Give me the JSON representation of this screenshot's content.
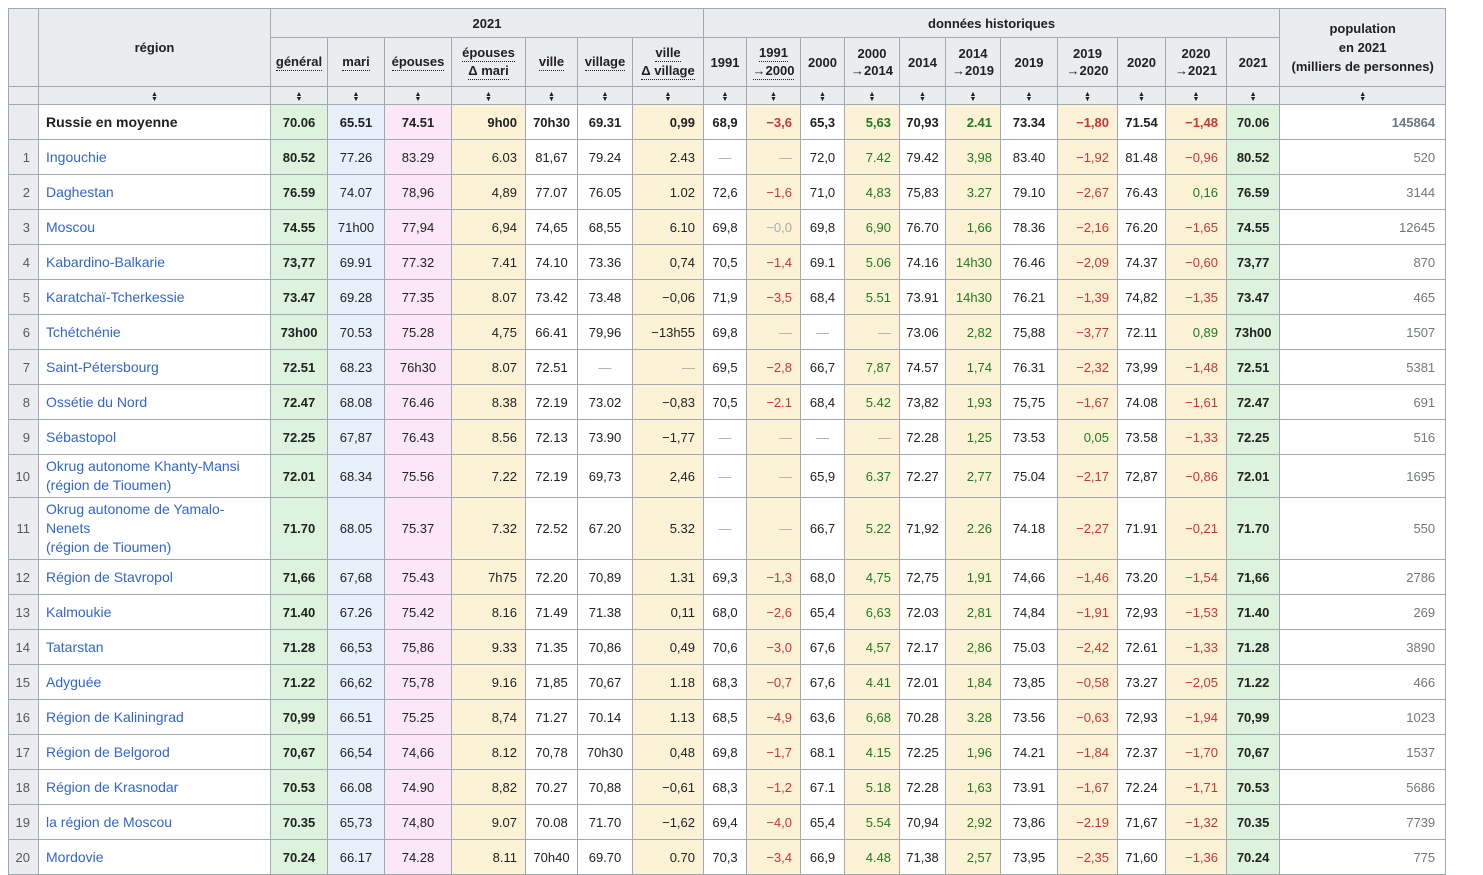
{
  "table": {
    "region_label": "région",
    "group_2021": "2021",
    "group_hist": "données historiques",
    "population_label": "population\nen 2021\n(milliers de personnes)",
    "columns_2021": [
      {
        "label": "général",
        "dotted": true
      },
      {
        "label": "mari",
        "dotted": true
      },
      {
        "label": "épouses",
        "dotted": true
      },
      {
        "label": "épouses\nΔ mari",
        "dotted": true
      },
      {
        "label": "ville",
        "dotted": true
      },
      {
        "label": "village",
        "dotted": true
      },
      {
        "label": "ville\nΔ village",
        "dotted": true
      }
    ],
    "columns_hist": [
      {
        "label": "1991",
        "dotted": false
      },
      {
        "label": "1991\n→2000",
        "dotted": true
      },
      {
        "label": "2000",
        "dotted": false
      },
      {
        "label": "2000\n→2014",
        "dotted": false
      },
      {
        "label": "2014",
        "dotted": false
      },
      {
        "label": "2014\n→2019",
        "dotted": false
      },
      {
        "label": "2019",
        "dotted": false
      },
      {
        "label": "2019\n→2020",
        "dotted": false
      },
      {
        "label": "2020",
        "dotted": false
      },
      {
        "label": "2020\n→2021",
        "dotted": false
      },
      {
        "label": "2021",
        "dotted": false
      }
    ],
    "rows": [
      {
        "num": "",
        "region": "Russie en moyenne",
        "link": false,
        "bold": true,
        "values": [
          "70.06",
          "65.51",
          "74.51",
          "9h00",
          "70h30",
          "69.31",
          "0,99",
          "68,9",
          "−3,6",
          "65,3",
          "5,63",
          "70,93",
          "2.41",
          "73.34",
          "−1,80",
          "71.54",
          "−1,48",
          "70.06"
        ],
        "pop": "145864"
      },
      {
        "num": "1",
        "region": "Ingouchie",
        "link": true,
        "values": [
          "80.52",
          "77.26",
          "83.29",
          "6.03",
          "81,67",
          "79.24",
          "2.43",
          "—",
          "—",
          "72,0",
          "7.42",
          "79.42",
          "3,98",
          "83.40",
          "−1,92",
          "81.48",
          "−0,96",
          "80.52"
        ],
        "pop": "520"
      },
      {
        "num": "2",
        "region": "Daghestan",
        "link": true,
        "values": [
          "76.59",
          "74.07",
          "78,96",
          "4,89",
          "77.07",
          "76.05",
          "1.02",
          "72,6",
          "−1,6",
          "71,0",
          "4,83",
          "75,83",
          "3.27",
          "79.10",
          "−2,67",
          "76.43",
          "0,16",
          "76.59"
        ],
        "pop": "3144"
      },
      {
        "num": "3",
        "region": "Moscou",
        "link": true,
        "values": [
          "74.55",
          "71h00",
          "77,94",
          "6,94",
          "74,65",
          "68,55",
          "6.10",
          "69,8",
          "−0,0",
          "69,8",
          "6,90",
          "76.70",
          "1,66",
          "78.36",
          "−2,16",
          "76.20",
          "−1,65",
          "74.55"
        ],
        "pop": "12645"
      },
      {
        "num": "4",
        "region": "Kabardino-Balkarie",
        "link": true,
        "values": [
          "73,77",
          "69.91",
          "77.32",
          "7.41",
          "74.10",
          "73.36",
          "0,74",
          "70,5",
          "−1,4",
          "69.1",
          "5.06",
          "74.16",
          "14h30",
          "76.46",
          "−2,09",
          "74.37",
          "−0,60",
          "73,77"
        ],
        "pop": "870"
      },
      {
        "num": "5",
        "region": "Karatchaï-Tcherkessie",
        "link": true,
        "values": [
          "73.47",
          "69.28",
          "77.35",
          "8.07",
          "73.42",
          "73.48",
          "−0,06",
          "71,9",
          "−3,5",
          "68,4",
          "5.51",
          "73.91",
          "14h30",
          "76.21",
          "−1,39",
          "74,82",
          "−1,35",
          "73.47"
        ],
        "pop": "465"
      },
      {
        "num": "6",
        "region": "Tchétchénie",
        "link": true,
        "values": [
          "73h00",
          "70.53",
          "75.28",
          "4,75",
          "66.41",
          "79,96",
          "−13h55",
          "69,8",
          "—",
          "—",
          "—",
          "73.06",
          "2,82",
          "75,88",
          "−3,77",
          "72.11",
          "0,89",
          "73h00"
        ],
        "pop": "1507"
      },
      {
        "num": "7",
        "region": "Saint-Pétersbourg",
        "link": true,
        "values": [
          "72.51",
          "68.23",
          "76h30",
          "8.07",
          "72.51",
          "—",
          "—",
          "69,5",
          "−2,8",
          "66,7",
          "7,87",
          "74.57",
          "1,74",
          "76.31",
          "−2,32",
          "73,99",
          "−1,48",
          "72.51"
        ],
        "pop": "5381"
      },
      {
        "num": "8",
        "region": "Ossétie du Nord",
        "link": true,
        "values": [
          "72.47",
          "68.08",
          "76.46",
          "8.38",
          "72.19",
          "73.02",
          "−0,83",
          "70,5",
          "−2.1",
          "68,4",
          "5.42",
          "73,82",
          "1,93",
          "75,75",
          "−1,67",
          "74.08",
          "−1,61",
          "72.47"
        ],
        "pop": "691"
      },
      {
        "num": "9",
        "region": "Sébastopol",
        "link": true,
        "values": [
          "72.25",
          "67,87",
          "76.43",
          "8.56",
          "72.13",
          "73.90",
          "−1,77",
          "—",
          "—",
          "—",
          "—",
          "72.28",
          "1,25",
          "73.53",
          "0,05",
          "73.58",
          "−1,33",
          "72.25"
        ],
        "pop": "516"
      },
      {
        "num": "10",
        "region": "Okrug autonome Khanty-Mansi\n(région de Tioumen)",
        "link": true,
        "values": [
          "72.01",
          "68.34",
          "75.56",
          "7.22",
          "72.19",
          "69,73",
          "2,46",
          "—",
          "—",
          "65,9",
          "6.37",
          "72.27",
          "2,77",
          "75.04",
          "−2,17",
          "72,87",
          "−0,86",
          "72.01"
        ],
        "pop": "1695"
      },
      {
        "num": "11",
        "region": "Okrug autonome de Yamalo-Nenets\n(région de Tioumen)",
        "link": true,
        "values": [
          "71.70",
          "68.05",
          "75.37",
          "7.32",
          "72.52",
          "67.20",
          "5.32",
          "—",
          "—",
          "66,7",
          "5.22",
          "71,92",
          "2.26",
          "74.18",
          "−2,27",
          "71.91",
          "−0,21",
          "71.70"
        ],
        "pop": "550"
      },
      {
        "num": "12",
        "region": "Région de Stavropol",
        "link": true,
        "values": [
          "71,66",
          "67,68",
          "75.43",
          "7h75",
          "72.20",
          "70,89",
          "1.31",
          "69,3",
          "−1,3",
          "68,0",
          "4,75",
          "72,75",
          "1,91",
          "74,66",
          "−1,46",
          "73.20",
          "−1,54",
          "71,66"
        ],
        "pop": "2786"
      },
      {
        "num": "13",
        "region": "Kalmoukie",
        "link": true,
        "values": [
          "71.40",
          "67.26",
          "75.42",
          "8.16",
          "71.49",
          "71.38",
          "0,11",
          "68,0",
          "−2,6",
          "65,4",
          "6,63",
          "72.03",
          "2,81",
          "74,84",
          "−1,91",
          "72,93",
          "−1,53",
          "71.40"
        ],
        "pop": "269"
      },
      {
        "num": "14",
        "region": "Tatarstan",
        "link": true,
        "values": [
          "71.28",
          "66,53",
          "75,86",
          "9.33",
          "71.35",
          "70,86",
          "0,49",
          "70,6",
          "−3,0",
          "67,6",
          "4,57",
          "72.17",
          "2,86",
          "75.03",
          "−2,42",
          "72.61",
          "−1,33",
          "71.28"
        ],
        "pop": "3890"
      },
      {
        "num": "15",
        "region": "Adyguée",
        "link": true,
        "values": [
          "71.22",
          "66,62",
          "75,78",
          "9.16",
          "71,85",
          "70,67",
          "1.18",
          "68,3",
          "−0,7",
          "67,6",
          "4.41",
          "72.01",
          "1,84",
          "73,85",
          "−0,58",
          "73.27",
          "−2,05",
          "71.22"
        ],
        "pop": "466"
      },
      {
        "num": "16",
        "region": "Région de Kaliningrad",
        "link": true,
        "values": [
          "70,99",
          "66.51",
          "75.25",
          "8,74",
          "71.27",
          "70.14",
          "1.13",
          "68,5",
          "−4,9",
          "63,6",
          "6,68",
          "70.28",
          "3.28",
          "73.56",
          "−0,63",
          "72,93",
          "−1,94",
          "70,99"
        ],
        "pop": "1023"
      },
      {
        "num": "17",
        "region": "Région de Belgorod",
        "link": true,
        "values": [
          "70,67",
          "66,54",
          "74,66",
          "8.12",
          "70,78",
          "70h30",
          "0,48",
          "69,8",
          "−1,7",
          "68.1",
          "4.15",
          "72.25",
          "1,96",
          "74.21",
          "−1,84",
          "72.37",
          "−1,70",
          "70,67"
        ],
        "pop": "1537"
      },
      {
        "num": "18",
        "region": "Région de Krasnodar",
        "link": true,
        "values": [
          "70.53",
          "66.08",
          "74.90",
          "8,82",
          "70.27",
          "70,88",
          "−0,61",
          "68,3",
          "−1,2",
          "67.1",
          "5.18",
          "72.28",
          "1,63",
          "73.91",
          "−1,67",
          "72.24",
          "−1,71",
          "70.53"
        ],
        "pop": "5686"
      },
      {
        "num": "19",
        "region": "la région de Moscou",
        "link": true,
        "values": [
          "70.35",
          "65,73",
          "74,80",
          "9.07",
          "70.08",
          "71.70",
          "−1,62",
          "69,4",
          "−4,0",
          "65,4",
          "5.54",
          "70,94",
          "2,92",
          "73,86",
          "−2.19",
          "71,67",
          "−1,32",
          "70.35"
        ],
        "pop": "7739"
      },
      {
        "num": "20",
        "region": "Mordovie",
        "link": true,
        "values": [
          "70.24",
          "66.17",
          "74.28",
          "8.11",
          "70h40",
          "69.70",
          "0.70",
          "70,3",
          "−3,4",
          "66,9",
          "4.48",
          "71,38",
          "2,57",
          "73,95",
          "−2,35",
          "71,60",
          "−1,36",
          "70.24"
        ],
        "pop": "775"
      }
    ]
  }
}
